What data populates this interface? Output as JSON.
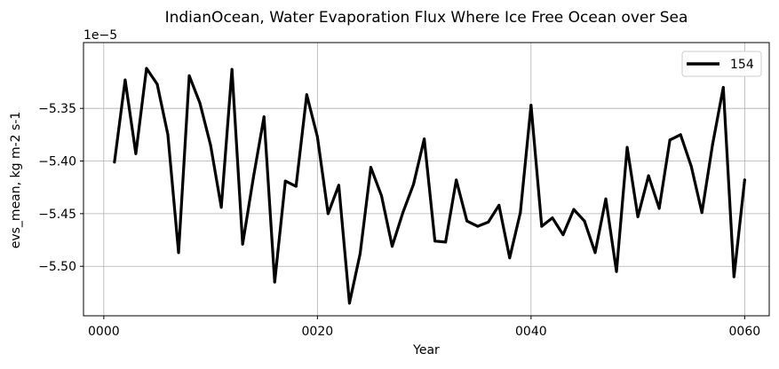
{
  "chart_data": {
    "type": "line",
    "title": "IndianOcean, Water Evaporation Flux Where Ice Free Ocean over Sea",
    "xlabel": "Year",
    "ylabel": "evs_mean, kg m-2 s-1",
    "offset_label": "1e−5",
    "x_ticks": [
      {
        "value": 0,
        "label": "0000"
      },
      {
        "value": 20,
        "label": "0020"
      },
      {
        "value": 40,
        "label": "0040"
      },
      {
        "value": 60,
        "label": "0060"
      }
    ],
    "y_ticks": [
      {
        "value": -5.35,
        "label": "−5.35"
      },
      {
        "value": -5.4,
        "label": "−5.40"
      },
      {
        "value": -5.45,
        "label": "−5.45"
      },
      {
        "value": -5.5,
        "label": "−5.50"
      }
    ],
    "xlim": [
      -1.9,
      62.3
    ],
    "ylim": [
      -5.547,
      -5.2875
    ],
    "grid": true,
    "legend_position": "top-right",
    "series": [
      {
        "name": "154",
        "color": "#000000",
        "x": [
          1,
          2,
          3,
          4,
          5,
          6,
          7,
          8,
          9,
          10,
          11,
          12,
          13,
          14,
          15,
          16,
          17,
          18,
          19,
          20,
          21,
          22,
          23,
          24,
          25,
          26,
          27,
          28,
          29,
          30,
          31,
          32,
          33,
          34,
          35,
          36,
          37,
          38,
          39,
          40,
          41,
          42,
          43,
          44,
          45,
          46,
          47,
          48,
          49,
          50,
          51,
          52,
          53,
          54,
          55,
          56,
          57,
          58,
          59,
          60
        ],
        "values": [
          -5.401,
          -5.323,
          -5.393,
          -5.312,
          -5.327,
          -5.375,
          -5.487,
          -5.319,
          -5.345,
          -5.385,
          -5.444,
          -5.313,
          -5.479,
          -5.416,
          -5.358,
          -5.515,
          -5.419,
          -5.424,
          -5.337,
          -5.377,
          -5.45,
          -5.423,
          -5.535,
          -5.488,
          -5.406,
          -5.433,
          -5.481,
          -5.449,
          -5.422,
          -5.379,
          -5.476,
          -5.477,
          -5.418,
          -5.457,
          -5.462,
          -5.458,
          -5.442,
          -5.492,
          -5.449,
          -5.347,
          -5.462,
          -5.454,
          -5.47,
          -5.446,
          -5.457,
          -5.487,
          -5.436,
          -5.505,
          -5.387,
          -5.453,
          -5.414,
          -5.445,
          -5.38,
          -5.375,
          -5.405,
          -5.449,
          -5.384,
          -5.33,
          -5.51,
          -5.418
        ]
      }
    ]
  }
}
